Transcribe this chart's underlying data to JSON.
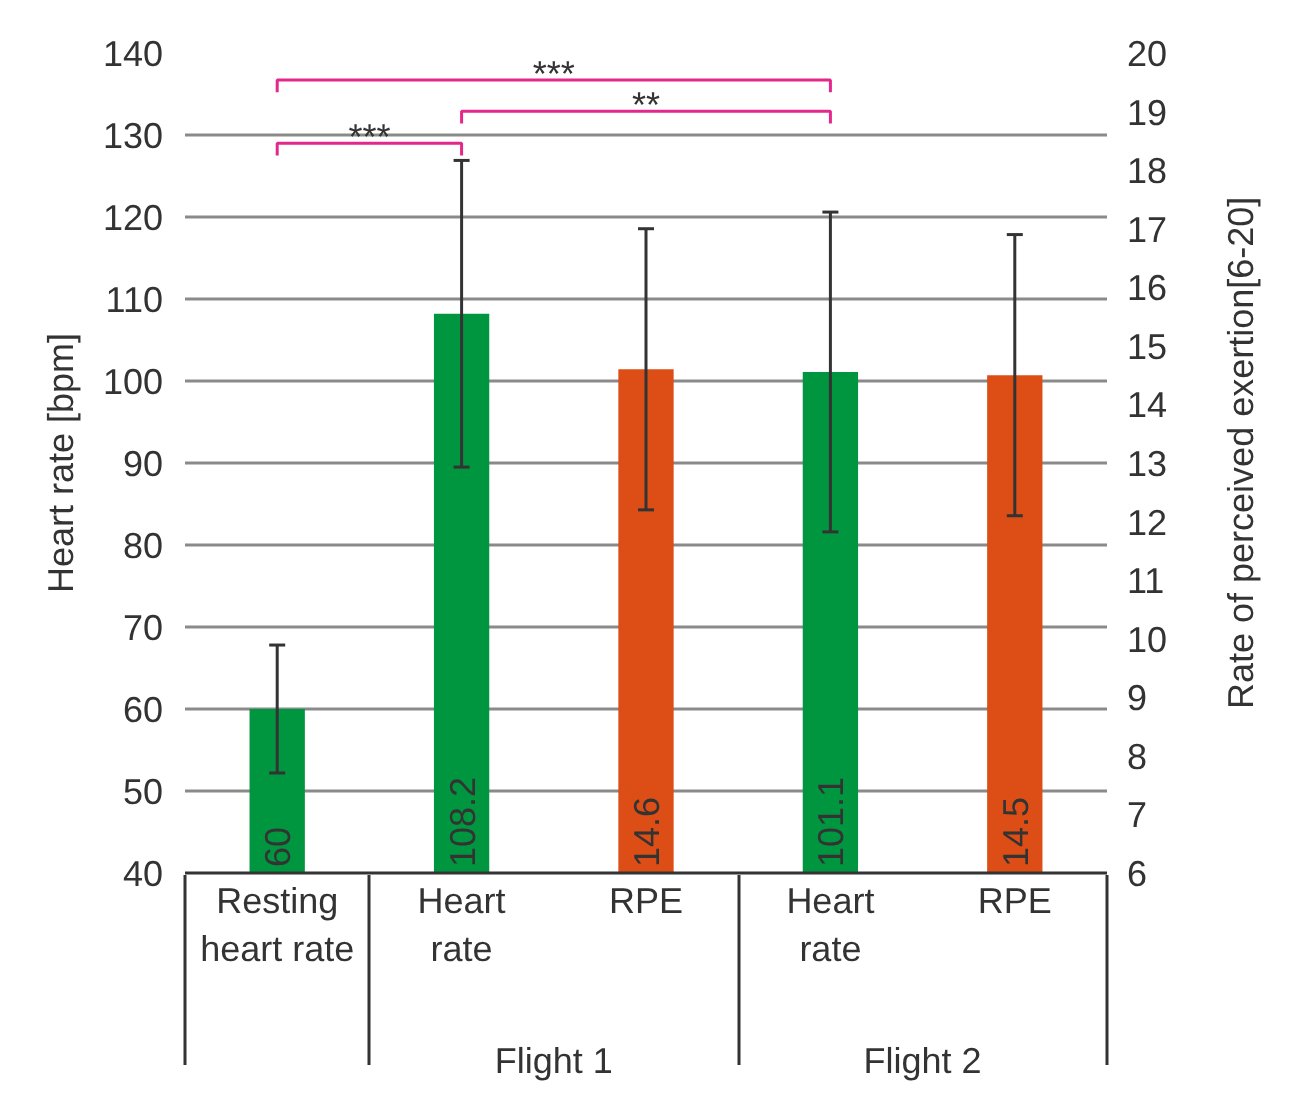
{
  "chart_data": {
    "type": "bar",
    "ylabel": "Heart rate [bpm]",
    "y2label": "Rate of perceived exertion[6-20]",
    "categories": [
      "Resting heart rate",
      "Heart rate",
      "RPE",
      "Heart rate",
      "RPE"
    ],
    "series": [
      {
        "color": "#009640",
        "values": [
          60,
          108.2,
          null,
          101.1,
          null
        ],
        "errors": [
          7.8,
          18.7,
          null,
          19.5,
          null
        ]
      },
      {
        "axis": "y2",
        "color": "#dc4e16",
        "values": [
          null,
          null,
          14.6,
          null,
          14.5
        ],
        "errors": [
          null,
          null,
          2.4,
          null,
          2.4
        ]
      }
    ],
    "ylim": [
      40,
      140
    ],
    "yticks": [
      40,
      50,
      60,
      70,
      80,
      90,
      100,
      110,
      120,
      130,
      140
    ],
    "y2lim": [
      6,
      20
    ],
    "y2ticks": [
      6,
      7,
      8,
      9,
      10,
      11,
      12,
      13,
      14,
      15,
      16,
      17,
      18,
      19,
      20
    ],
    "grid": "y",
    "data_labels": true,
    "annotations": [
      "***",
      "**",
      "***",
      "Flight 1",
      "Flight 2"
    ]
  }
}
